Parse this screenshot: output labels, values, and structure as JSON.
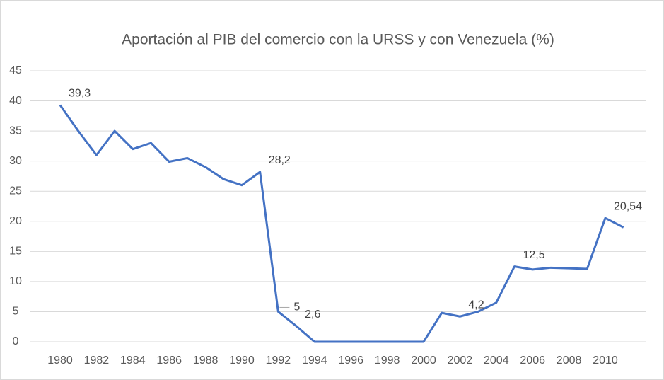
{
  "chart_data": {
    "type": "line",
    "title": "Aportación al PIB del comercio con la URSS y con Venezuela (%)",
    "categories": [
      "1980",
      null,
      "1982",
      null,
      "1984",
      null,
      "1986",
      null,
      "1988",
      null,
      "1990",
      null,
      "1992",
      null,
      "1994",
      null,
      "1996",
      null,
      "1998",
      null,
      "2000",
      null,
      "2002",
      null,
      "2004",
      null,
      "2006",
      null,
      "2008",
      null,
      "2010",
      null
    ],
    "series": [
      {
        "name": "Aportación al PIB",
        "color": "#4472c4",
        "values": [
          39.3,
          35,
          31,
          35,
          32,
          33,
          29.9,
          30.5,
          29,
          27,
          26,
          28.2,
          5,
          2.6,
          0,
          0,
          0,
          0,
          0,
          0,
          0,
          4.8,
          4.2,
          5,
          6.5,
          12.5,
          12,
          12.3,
          12.2,
          12.1,
          20.54,
          19
        ],
        "value_labels": [
          "39,3",
          null,
          null,
          null,
          null,
          null,
          null,
          null,
          null,
          null,
          null,
          "28,2",
          "5",
          "2,6",
          null,
          null,
          null,
          null,
          null,
          null,
          null,
          null,
          "4,2",
          null,
          null,
          "12,5",
          null,
          null,
          null,
          null,
          "20,54",
          null
        ]
      }
    ],
    "ylim": [
      0,
      45
    ],
    "yticks": [
      0,
      5,
      10,
      15,
      20,
      25,
      30,
      35,
      40,
      45
    ],
    "grid": true
  }
}
